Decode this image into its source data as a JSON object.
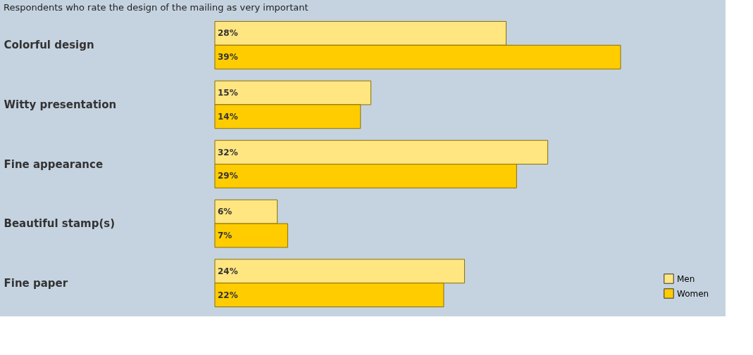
{
  "chart_data": {
    "type": "bar",
    "orientation": "horizontal",
    "title": "Respondents who rate the design of the mailing as very important",
    "categories": [
      "Colorful design",
      "Witty presentation",
      "Fine appearance",
      "Beautiful stamp(s)",
      "Fine paper"
    ],
    "series": [
      {
        "name": "Men",
        "color": "#ffe680",
        "values": [
          28,
          15,
          32,
          6,
          24
        ],
        "value_labels": [
          "28%",
          "15%",
          "32%",
          "6%",
          "24%"
        ]
      },
      {
        "name": "Women",
        "color": "#ffcc00",
        "values": [
          39,
          14,
          29,
          7,
          22
        ],
        "value_labels": [
          "39%",
          "14%",
          "29%",
          "7%",
          "22%"
        ]
      }
    ],
    "legend": "bottom right",
    "grid": false
  }
}
